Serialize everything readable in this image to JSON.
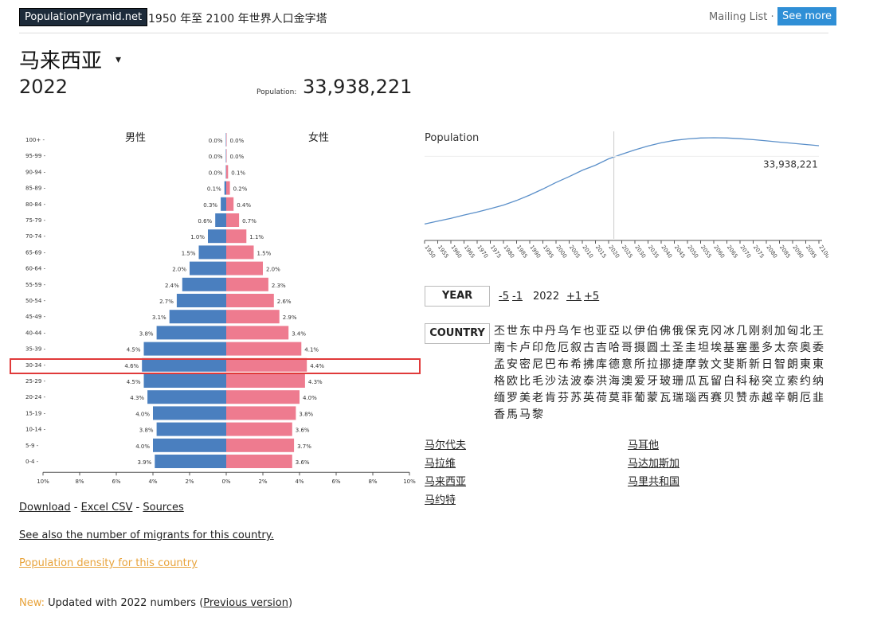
{
  "header": {
    "brand": "PopulationPyramid.net",
    "tagline": "1950 年至 2100 年世界人口金字塔",
    "mailing_list": "Mailing List ·",
    "see_more": "See more"
  },
  "title": {
    "country": "马来西亚",
    "caret": "▾",
    "year": "2022",
    "population_label": "Population:",
    "population_value": "33,938,221"
  },
  "chart_data": [
    {
      "type": "bar",
      "subtype": "population-pyramid",
      "left_label": "男性",
      "right_label": "女性",
      "categories": [
        "100+",
        "95-99",
        "90-94",
        "85-89",
        "80-84",
        "75-79",
        "70-74",
        "65-69",
        "60-64",
        "55-59",
        "50-54",
        "45-49",
        "40-44",
        "35-39",
        "30-34",
        "25-29",
        "20-24",
        "15-19",
        "10-14",
        "5-9",
        "0-4"
      ],
      "series": [
        {
          "name": "男性",
          "color": "#4a7fbf",
          "values": [
            0.0,
            0.0,
            0.0,
            0.1,
            0.3,
            0.6,
            1.0,
            1.5,
            2.0,
            2.4,
            2.7,
            3.1,
            3.8,
            4.5,
            4.6,
            4.5,
            4.3,
            4.0,
            3.8,
            4.0,
            3.9
          ]
        },
        {
          "name": "女性",
          "color": "#ee7b8f",
          "values": [
            0.0,
            0.0,
            0.1,
            0.2,
            0.4,
            0.7,
            1.1,
            1.5,
            2.0,
            2.3,
            2.6,
            2.9,
            3.4,
            4.1,
            4.4,
            4.3,
            4.0,
            3.8,
            3.6,
            3.7,
            3.6
          ]
        }
      ],
      "value_labels_left": [
        "0.0%",
        "0.0%",
        "0.0%",
        "0.1%",
        "0.3%",
        "0.6%",
        "1.0%",
        "1.5%",
        "2.0%",
        "2.4%",
        "2.7%",
        "3.1%",
        "3.8%",
        "4.5%",
        "4.6%",
        "4.5%",
        "4.3%",
        "4.0%",
        "3.8%",
        "4.0%",
        "3.9%"
      ],
      "value_labels_right": [
        "0.0%",
        "0.0%",
        "0.1%",
        "0.2%",
        "0.4%",
        "0.7%",
        "1.1%",
        "1.5%",
        "2.0%",
        "2.3%",
        "2.6%",
        "2.9%",
        "3.4%",
        "4.1%",
        "4.4%",
        "4.3%",
        "4.0%",
        "3.8%",
        "3.6%",
        "3.7%",
        "3.6%"
      ],
      "x_ticks": [
        "10%",
        "8%",
        "6%",
        "4%",
        "2%",
        "0%",
        "2%",
        "4%",
        "6%",
        "8%",
        "10%"
      ],
      "xlim": [
        -10,
        10
      ],
      "highlighted_category": "30-34"
    },
    {
      "type": "line",
      "title": "Population",
      "x": [
        1950,
        1955,
        1960,
        1965,
        1970,
        1975,
        1980,
        1985,
        1990,
        1995,
        2000,
        2005,
        2010,
        2015,
        2020,
        2025,
        2030,
        2035,
        2040,
        2045,
        2050,
        2055,
        2060,
        2065,
        2070,
        2075,
        2080,
        2085,
        2090,
        2095,
        2100
      ],
      "y": [
        6.1,
        7.3,
        8.4,
        9.8,
        11.0,
        12.4,
        13.9,
        15.8,
        18.0,
        20.5,
        23.2,
        25.6,
        28.2,
        30.3,
        32.9,
        34.8,
        36.6,
        38.2,
        39.5,
        40.5,
        41.1,
        41.5,
        41.6,
        41.5,
        41.2,
        40.8,
        40.3,
        39.8,
        39.3,
        38.8,
        38.3
      ],
      "y_unit": "millions",
      "marker_year": 2022,
      "marker_label": "33,938,221"
    }
  ],
  "controls": {
    "year_label": "YEAR",
    "minus5": "-5",
    "minus1": "-1",
    "current_year": "2022",
    "plus1": "+1",
    "plus5": "+5",
    "country_label": "COUNTRY"
  },
  "letters": [
    "丕",
    "世",
    "东",
    "中",
    "丹",
    "乌",
    "乍",
    "也",
    "亚",
    "亞",
    "以",
    "伊",
    "伯",
    "佛",
    "俄",
    "保",
    "克",
    "冈",
    "冰",
    "几",
    "刚",
    "刹",
    "加",
    "匈",
    "北",
    "王",
    "南",
    "卡",
    "卢",
    "印",
    "危",
    "厄",
    "叙",
    "古",
    "吉",
    "哈",
    "哥",
    "摄",
    "圆",
    "土",
    "圣",
    "圭",
    "坦",
    "埃",
    "基",
    "塞",
    "墨",
    "多",
    "太",
    "奈",
    "奥",
    "委",
    "孟",
    "安",
    "密",
    "尼",
    "巴",
    "布",
    "希",
    "拂",
    "库",
    "德",
    "意",
    "所",
    "拉",
    "挪",
    "捷",
    "摩",
    "敦",
    "文",
    "斐",
    "斯",
    "新",
    "日",
    "智",
    "朗",
    "東",
    "東",
    "格",
    "欧",
    "比",
    "毛",
    "沙",
    "法",
    "波",
    "泰",
    "洪",
    "海",
    "澳",
    "爱",
    "牙",
    "玻",
    "珊",
    "瓜",
    "瓦",
    "留",
    "白",
    "科",
    "秘",
    "突",
    "立",
    "索",
    "约",
    "纳",
    "缅",
    "罗",
    "美",
    "老",
    "肯",
    "芬",
    "苏",
    "英",
    "荷",
    "莫",
    "菲",
    "葡",
    "蒙",
    "瓦",
    "瑞",
    "瑙",
    "西",
    "赛",
    "贝",
    "赞",
    "赤",
    "越",
    "辛",
    "朝",
    "厄",
    "韭",
    "香",
    "馬",
    "马",
    "黎"
  ],
  "country_links": {
    "col1": [
      "马尔代夫",
      "马拉维",
      "马来西亚",
      "马约特"
    ],
    "col2": [
      "马耳他",
      "马达加斯加",
      "马里共和国"
    ]
  },
  "footer": {
    "download": "Download",
    "sep1": " - ",
    "excel": "Excel CSV",
    "sep2": " - ",
    "sources": "Sources",
    "migrants": "See also the number of migrants for this country.",
    "density": "Population density for this country",
    "new_label": "New:",
    "updated_text": " Updated with 2022 numbers (",
    "previous": "Previous version",
    "close_paren": ")"
  },
  "colors": {
    "male": "#4a7fbf",
    "female": "#ee7b8f",
    "highlight": "#e03a3a",
    "accent": "#2f8fd6"
  }
}
